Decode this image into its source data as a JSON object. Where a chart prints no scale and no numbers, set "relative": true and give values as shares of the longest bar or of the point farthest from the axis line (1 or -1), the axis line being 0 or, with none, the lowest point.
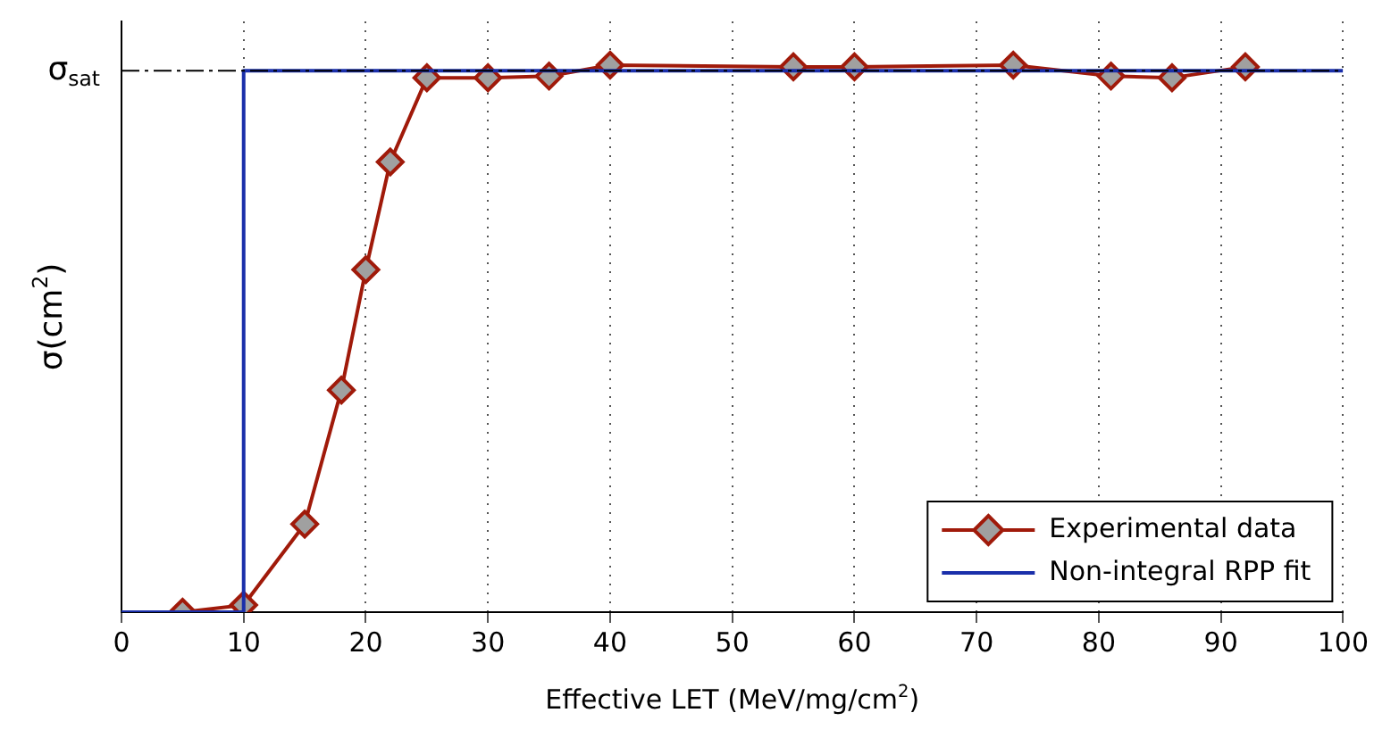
{
  "chart_data": {
    "type": "line",
    "relative": true,
    "xlabel": "Effective LET (MeV/mg/cm$^{2}$)",
    "ylabel": "σ(cm$^{2}$)",
    "xlim": [
      0,
      100
    ],
    "xticks": [
      0,
      10,
      20,
      30,
      40,
      50,
      60,
      70,
      80,
      90,
      100
    ],
    "grid": "x",
    "legend": "bottom right",
    "marker": "diamond",
    "line_style": "solid",
    "ref_lines": [
      {
        "axis": "y",
        "value": 0.99,
        "label": "σ$_{sat}$",
        "color": "#000000",
        "line_style": "dashed"
      }
    ],
    "series": [
      {
        "name": "Experimental data",
        "color": "#a01a0a",
        "x": [
          5,
          10,
          15,
          18,
          20,
          22,
          25,
          30,
          35,
          40,
          55,
          60,
          73,
          81,
          86,
          92
        ],
        "values": [
          0,
          0.013,
          0.161,
          0.406,
          0.626,
          0.823,
          0.977,
          0.977,
          0.98,
          1,
          0.997,
          0.997,
          1,
          0.98,
          0.977,
          0.997
        ]
      },
      {
        "name": "Non-integral RPP fit",
        "color": "#1a2faa",
        "marker": "none",
        "x": [
          0,
          10,
          10,
          100
        ],
        "values": [
          0,
          0,
          0.99,
          0.99
        ]
      }
    ]
  }
}
